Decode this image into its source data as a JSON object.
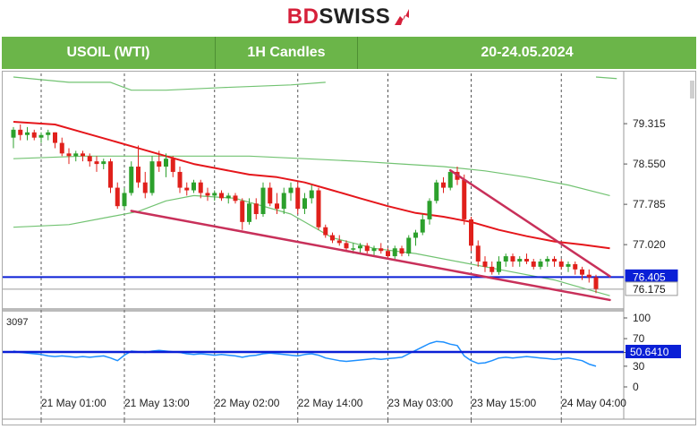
{
  "brand": {
    "name_a": "BD",
    "name_b": "SWISS"
  },
  "header": {
    "symbol": "USOIL (WTI)",
    "timeframe": "1H Candles",
    "date_range": "20-24.05.2024"
  },
  "colors": {
    "bull": "#2ca02c",
    "bear": "#e0201b",
    "ma": "#e5161b",
    "band": "#72c372",
    "trend": "#c8305a",
    "level": "#0a1fd6",
    "rsi": "#1e90ff"
  },
  "chart_data": [
    {
      "type": "candlestick",
      "title": "",
      "y_ticks": [
        79.315,
        78.55,
        77.785,
        77.02
      ],
      "ylim": [
        75.85,
        80.2
      ],
      "x_ticks": [
        {
          "label": "21 May 01:00",
          "idx": 4
        },
        {
          "label": "21 May 13:00",
          "idx": 16
        },
        {
          "label": "22 May 02:00",
          "idx": 29
        },
        {
          "label": "22 May 14:00",
          "idx": 41
        },
        {
          "label": "23 May 03:00",
          "idx": 54
        },
        {
          "label": "23 May 15:00",
          "idx": 66
        },
        {
          "label": "24 May 04:00",
          "idx": 79
        }
      ],
      "price_labels": [
        {
          "value": 76.405,
          "text": "76.405",
          "kind": "level"
        },
        {
          "value": 76.175,
          "text": "76.175",
          "kind": "last"
        }
      ],
      "horizontal_levels": [
        76.405
      ],
      "trendlines": [
        {
          "from": [
            17,
            77.66
          ],
          "to": [
            86,
            75.97
          ]
        },
        {
          "from": [
            63,
            78.43
          ],
          "to": [
            86,
            76.42
          ]
        }
      ],
      "candles": [
        [
          79.05,
          79.25,
          78.85,
          79.2
        ],
        [
          79.2,
          79.3,
          79.0,
          79.1
        ],
        [
          79.1,
          79.25,
          79.0,
          79.15
        ],
        [
          79.15,
          79.2,
          79.0,
          79.05
        ],
        [
          79.05,
          79.15,
          78.95,
          79.1
        ],
        [
          79.1,
          79.2,
          79.0,
          79.15
        ],
        [
          79.15,
          79.15,
          78.85,
          78.95
        ],
        [
          78.95,
          79.05,
          78.7,
          78.75
        ],
        [
          78.75,
          78.85,
          78.55,
          78.7
        ],
        [
          78.7,
          78.8,
          78.6,
          78.75
        ],
        [
          78.75,
          78.8,
          78.6,
          78.7
        ],
        [
          78.7,
          78.75,
          78.5,
          78.6
        ],
        [
          78.6,
          78.7,
          78.4,
          78.55
        ],
        [
          78.55,
          78.65,
          78.45,
          78.6
        ],
        [
          78.6,
          78.65,
          78.0,
          78.1
        ],
        [
          78.1,
          78.2,
          77.7,
          77.75
        ],
        [
          77.75,
          78.1,
          77.7,
          78.0
        ],
        [
          78.0,
          78.6,
          77.95,
          78.5
        ],
        [
          78.5,
          78.9,
          78.1,
          78.2
        ],
        [
          78.2,
          78.4,
          77.9,
          78.0
        ],
        [
          78.0,
          78.7,
          77.95,
          78.6
        ],
        [
          78.6,
          78.8,
          78.4,
          78.5
        ],
        [
          78.5,
          78.75,
          78.3,
          78.65
        ],
        [
          78.65,
          78.7,
          78.3,
          78.4
        ],
        [
          78.4,
          78.5,
          78.0,
          78.1
        ],
        [
          78.1,
          78.2,
          77.95,
          78.05
        ],
        [
          78.05,
          78.25,
          78.0,
          78.2
        ],
        [
          78.2,
          78.25,
          77.9,
          78.0
        ],
        [
          78.0,
          78.1,
          77.85,
          77.95
        ],
        [
          77.95,
          78.05,
          77.85,
          78.0
        ],
        [
          78.0,
          78.05,
          77.85,
          77.9
        ],
        [
          77.9,
          78.0,
          77.8,
          77.95
        ],
        [
          77.95,
          78.0,
          77.8,
          77.85
        ],
        [
          77.85,
          77.9,
          77.3,
          77.45
        ],
        [
          77.45,
          77.9,
          77.4,
          77.8
        ],
        [
          77.8,
          77.9,
          77.5,
          77.6
        ],
        [
          77.6,
          78.2,
          77.55,
          78.1
        ],
        [
          78.1,
          78.2,
          77.75,
          77.8
        ],
        [
          77.8,
          78.0,
          77.6,
          77.7
        ],
        [
          77.7,
          78.1,
          77.6,
          78.0
        ],
        [
          78.0,
          78.2,
          77.85,
          78.1
        ],
        [
          78.1,
          78.2,
          77.6,
          77.7
        ],
        [
          77.7,
          78.0,
          77.6,
          77.9
        ],
        [
          77.9,
          78.15,
          77.8,
          78.05
        ],
        [
          78.05,
          78.1,
          77.3,
          77.35
        ],
        [
          77.35,
          77.4,
          77.15,
          77.2
        ],
        [
          77.2,
          77.25,
          77.05,
          77.1
        ],
        [
          77.1,
          77.2,
          77.0,
          77.05
        ],
        [
          77.05,
          77.1,
          76.9,
          76.95
        ],
        [
          76.95,
          77.05,
          76.85,
          76.95
        ],
        [
          76.95,
          77.05,
          76.85,
          77.0
        ],
        [
          77.0,
          77.05,
          76.85,
          76.9
        ],
        [
          76.9,
          77.0,
          76.8,
          76.95
        ],
        [
          76.95,
          77.05,
          76.85,
          76.9
        ],
        [
          76.9,
          76.95,
          76.75,
          76.8
        ],
        [
          76.8,
          77.0,
          76.75,
          76.95
        ],
        [
          76.95,
          77.0,
          76.8,
          76.85
        ],
        [
          76.85,
          77.2,
          76.8,
          77.15
        ],
        [
          77.15,
          77.3,
          77.0,
          77.25
        ],
        [
          77.25,
          77.6,
          77.2,
          77.5
        ],
        [
          77.5,
          77.9,
          77.4,
          77.85
        ],
        [
          77.85,
          78.25,
          77.8,
          78.2
        ],
        [
          78.2,
          78.3,
          78.0,
          78.1
        ],
        [
          78.1,
          78.45,
          78.05,
          78.4
        ],
        [
          78.4,
          78.5,
          78.15,
          78.25
        ],
        [
          78.25,
          78.35,
          77.4,
          77.5
        ],
        [
          77.5,
          77.55,
          76.9,
          77.0
        ],
        [
          77.0,
          77.1,
          76.6,
          76.7
        ],
        [
          76.7,
          76.8,
          76.5,
          76.6
        ],
        [
          76.6,
          76.7,
          76.45,
          76.5
        ],
        [
          76.5,
          76.8,
          76.45,
          76.7
        ],
        [
          76.7,
          76.85,
          76.6,
          76.8
        ],
        [
          76.8,
          76.85,
          76.6,
          76.7
        ],
        [
          76.7,
          76.8,
          76.6,
          76.75
        ],
        [
          76.75,
          76.85,
          76.65,
          76.7
        ],
        [
          76.7,
          76.75,
          76.55,
          76.6
        ],
        [
          76.6,
          76.75,
          76.55,
          76.7
        ],
        [
          76.7,
          76.8,
          76.6,
          76.75
        ],
        [
          76.75,
          76.8,
          76.6,
          76.7
        ],
        [
          76.7,
          76.75,
          76.55,
          76.6
        ],
        [
          76.6,
          76.7,
          76.5,
          76.65
        ],
        [
          76.65,
          76.7,
          76.45,
          76.55
        ],
        [
          76.55,
          76.6,
          76.35,
          76.45
        ],
        [
          76.45,
          76.55,
          76.3,
          76.4
        ],
        [
          76.4,
          76.45,
          76.1,
          76.18
        ]
      ],
      "moving_average": [
        [
          0,
          79.35
        ],
        [
          6,
          79.3
        ],
        [
          10,
          79.15
        ],
        [
          14,
          79.0
        ],
        [
          18,
          78.85
        ],
        [
          22,
          78.7
        ],
        [
          26,
          78.55
        ],
        [
          30,
          78.45
        ],
        [
          34,
          78.35
        ],
        [
          38,
          78.3
        ],
        [
          42,
          78.2
        ],
        [
          46,
          78.05
        ],
        [
          50,
          77.9
        ],
        [
          54,
          77.75
        ],
        [
          58,
          77.62
        ],
        [
          62,
          77.55
        ],
        [
          66,
          77.45
        ],
        [
          70,
          77.3
        ],
        [
          74,
          77.18
        ],
        [
          78,
          77.08
        ],
        [
          82,
          77.02
        ],
        [
          86,
          76.95
        ]
      ],
      "bollinger_upper": [
        [
          0,
          80.2
        ],
        [
          8,
          80.1
        ],
        [
          14,
          80.1
        ],
        [
          17,
          79.95
        ],
        [
          22,
          79.95
        ],
        [
          30,
          80.0
        ],
        [
          40,
          80.05
        ],
        [
          45,
          80.1
        ]
      ],
      "bollinger_mid": [
        [
          0,
          78.65
        ],
        [
          10,
          78.7
        ],
        [
          18,
          78.7
        ],
        [
          26,
          78.7
        ],
        [
          34,
          78.7
        ],
        [
          42,
          78.65
        ],
        [
          50,
          78.6
        ],
        [
          56,
          78.55
        ],
        [
          62,
          78.5
        ],
        [
          68,
          78.42
        ],
        [
          74,
          78.3
        ],
        [
          80,
          78.15
        ],
        [
          86,
          77.95
        ]
      ],
      "bollinger_lower": [
        [
          0,
          77.35
        ],
        [
          8,
          77.4
        ],
        [
          14,
          77.55
        ],
        [
          18,
          77.65
        ],
        [
          22,
          77.85
        ],
        [
          26,
          77.95
        ],
        [
          32,
          77.9
        ],
        [
          40,
          77.6
        ],
        [
          46,
          77.15
        ],
        [
          52,
          76.95
        ],
        [
          58,
          76.85
        ],
        [
          64,
          76.7
        ],
        [
          70,
          76.55
        ],
        [
          78,
          76.35
        ],
        [
          86,
          76.05
        ]
      ]
    },
    {
      "type": "line",
      "title": "",
      "label_left": "3097",
      "y_ticks": [
        100,
        70,
        50,
        30,
        0
      ],
      "ylim": [
        0,
        100
      ],
      "level": 50.641,
      "level_text": "50.6410",
      "values": [
        52,
        50,
        49,
        48,
        47,
        45,
        44,
        45,
        44,
        43,
        44,
        43,
        44,
        45,
        42,
        38,
        46,
        52,
        51,
        50,
        52,
        53,
        52,
        51,
        50,
        48,
        47,
        48,
        47,
        46,
        47,
        46,
        45,
        43,
        45,
        46,
        48,
        49,
        48,
        47,
        46,
        45,
        47,
        48,
        46,
        42,
        40,
        38,
        37,
        38,
        39,
        40,
        41,
        40,
        41,
        42,
        43,
        48,
        53,
        58,
        63,
        66,
        65,
        62,
        60,
        45,
        38,
        34,
        35,
        38,
        42,
        43,
        42,
        43,
        44,
        43,
        42,
        41,
        40,
        41,
        42,
        40,
        38,
        33,
        30
      ]
    }
  ]
}
